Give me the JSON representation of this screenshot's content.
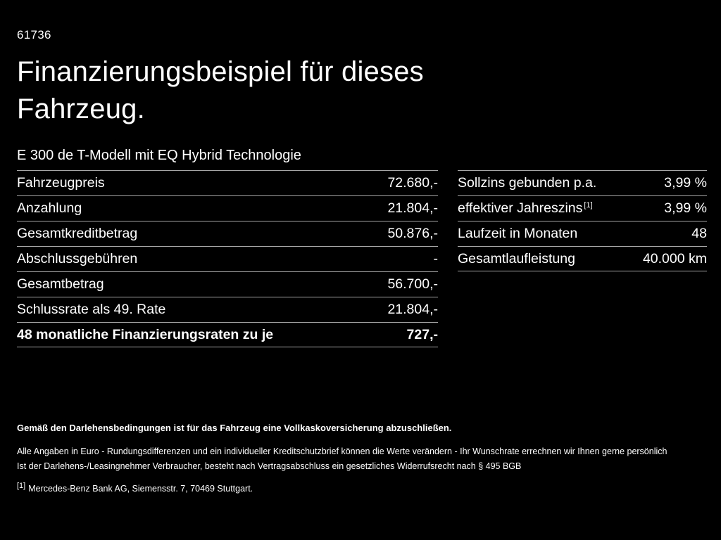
{
  "page": {
    "id_number": "61736",
    "title_line1": "Finanzierungsbeispiel für dieses",
    "title_line2": "Fahrzeug.",
    "subtitle": "E 300 de T-Modell mit EQ Hybrid Technologie"
  },
  "left_table": {
    "rows": [
      {
        "label": "Fahrzeugpreis",
        "value": "72.680,-"
      },
      {
        "label": "Anzahlung",
        "value": "21.804,-"
      },
      {
        "label": "Gesamtkreditbetrag",
        "value": "50.876,-"
      },
      {
        "label": "Abschlussgebühren",
        "value": "-"
      },
      {
        "label": "Gesamtbetrag",
        "value": "56.700,-"
      },
      {
        "label": "Schlussrate als 49. Rate",
        "value": "21.804,-"
      },
      {
        "label": "48 monatliche Finanzierungsraten zu je",
        "value": "727,-"
      }
    ]
  },
  "right_table": {
    "rows": [
      {
        "label": "Sollzins gebunden p.a.",
        "value": "3,99 %"
      },
      {
        "label": "effektiver Jahreszins",
        "footnote_marker": "[1]",
        "value": "3,99 %"
      },
      {
        "label": "Laufzeit in Monaten",
        "value": "48"
      },
      {
        "label": "Gesamtlaufleistung",
        "value": "40.000 km"
      }
    ]
  },
  "footer": {
    "line1_bold": "Gemäß den Darlehensbedingungen ist für das Fahrzeug eine Vollkaskoversicherung abzuschließen.",
    "line2": "Alle Angaben in Euro - Rundungsdifferenzen und ein individueller Kreditschutzbrief können die Werte verändern - Ihr Wunschrate errechnen wir Ihnen gerne persönlich",
    "line3": "Ist der Darlehens-/Leasingnehmer Verbraucher, besteht nach Vertragsabschluss ein gesetzliches Widerrufsrecht nach § 495 BGB",
    "footnote_marker": "[1]",
    "footnote_text": "Mercedes-Benz Bank AG, Siemensstr. 7, 70469 Stuttgart."
  },
  "colors": {
    "background": "#000000",
    "text": "#ffffff",
    "divider": "#a6a6a6"
  }
}
